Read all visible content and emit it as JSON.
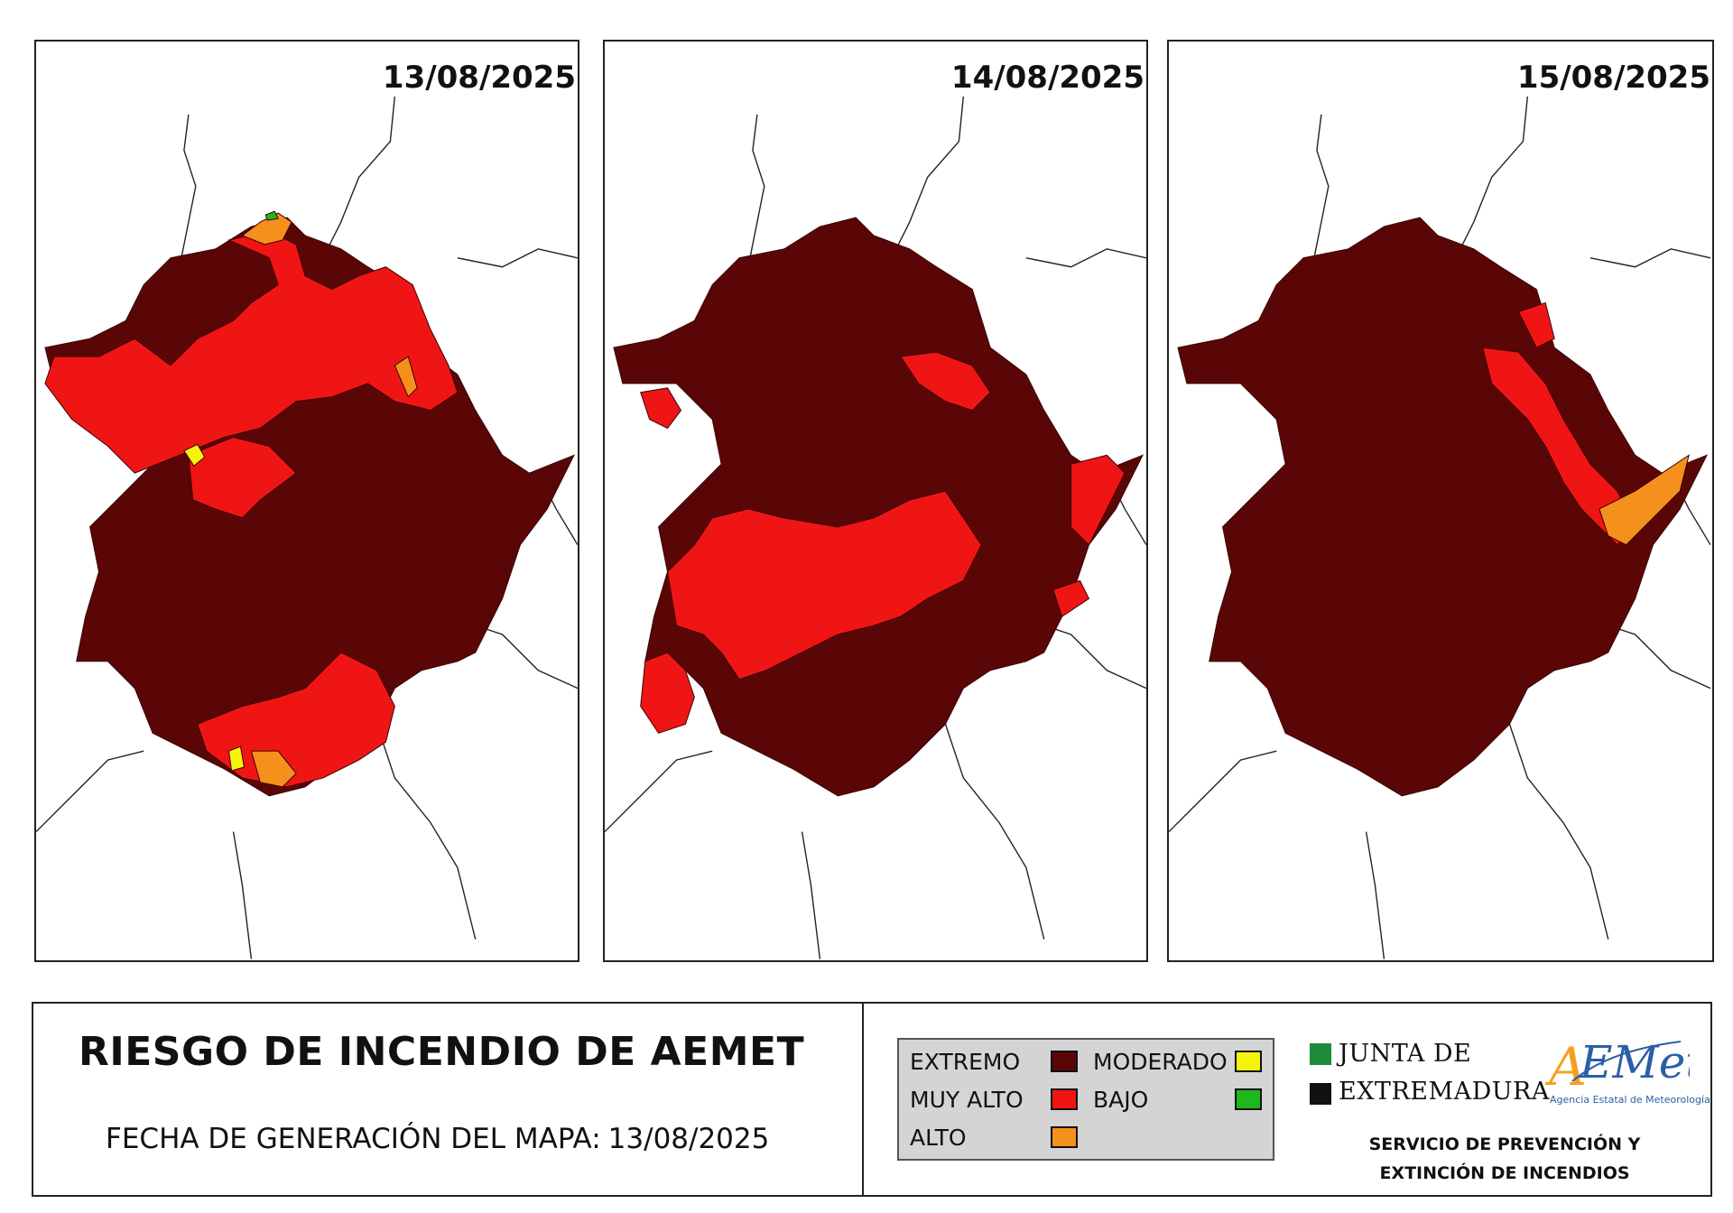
{
  "panels": [
    {
      "date": "13/08/2025"
    },
    {
      "date": "14/08/2025"
    },
    {
      "date": "15/08/2025"
    }
  ],
  "title": "RIESGO DE INCENDIO DE AEMET",
  "generation": {
    "label": "FECHA DE GENERACIÓN DEL MAPA:",
    "date": "13/08/2025"
  },
  "legend": {
    "items": [
      {
        "label": "EXTREMO",
        "color": "#5a0606"
      },
      {
        "label": "MUY ALTO",
        "color": "#f01515"
      },
      {
        "label": "ALTO",
        "color": "#f5901c"
      },
      {
        "label": "MODERADO",
        "color": "#f6f40c"
      },
      {
        "label": "BAJO",
        "color": "#1db81d"
      }
    ]
  },
  "organization": {
    "line1": "JUNTA DE",
    "line2": "EXTREMADURA",
    "logo_text": "AEMet",
    "logo_subtitle": "Agencia Estatal de Meteorología",
    "service_line1": "SERVICIO DE PREVENCIÓN Y",
    "service_line2": "EXTINCIÓN DE INCENDIOS"
  },
  "colors": {
    "extremo": "#5a0606",
    "muy_alto": "#f01515",
    "alto": "#f5901c",
    "moderado": "#f6f40c",
    "bajo": "#1db81d",
    "junta_green": "#1e8a3a"
  }
}
